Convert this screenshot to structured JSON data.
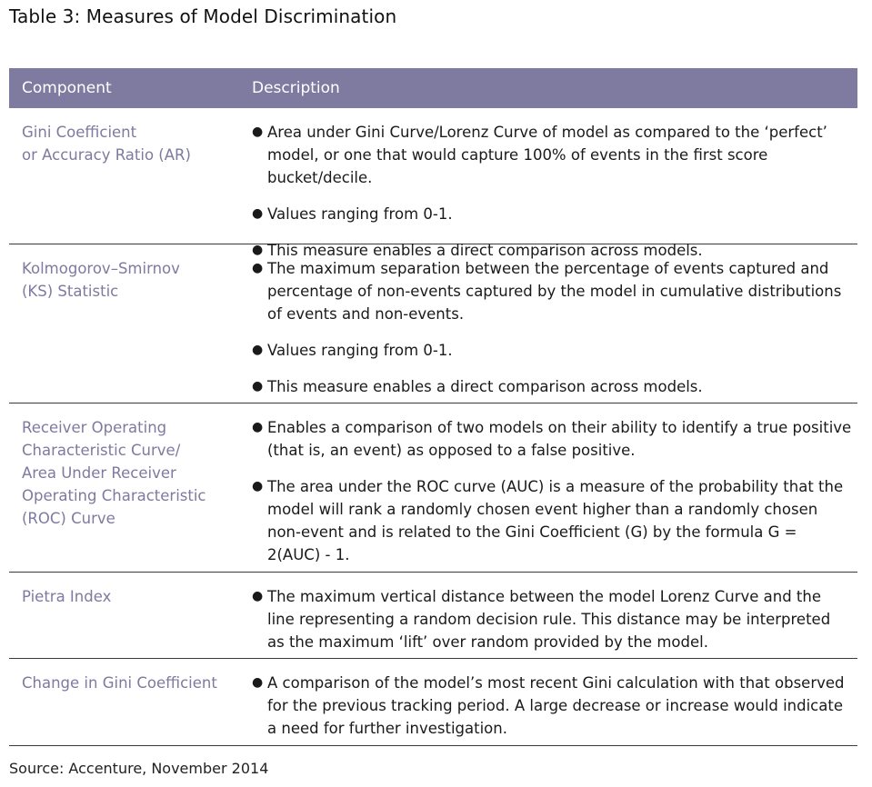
{
  "title": "Table 3: Measures of Model Discrimination",
  "header": {
    "component": "Component",
    "description": "Description"
  },
  "rows": [
    {
      "component_lines": [
        "Gini Coefficient",
        "or Accuracy Ratio (AR)"
      ],
      "bullets": [
        "Area under Gini Curve/Lorenz Curve of model as compared to the ‘perfect’ model, or one that would capture 100% of events in the first score bucket/decile.",
        "Values ranging from 0-1.",
        "This measure enables a direct comparison across models."
      ]
    },
    {
      "component_lines": [
        "Kolmogorov–Smirnov",
        "(KS) Statistic"
      ],
      "bullets": [
        "The maximum separation between the percentage of events captured and percentage of non-events captured by the model in cumulative distributions of events and non-events.",
        "Values ranging from 0-1.",
        "This measure enables a direct comparison across models."
      ]
    },
    {
      "component_lines": [
        "Receiver Operating",
        "Characteristic Curve/",
        "Area Under Receiver",
        "Operating Characteristic",
        "(ROC) Curve"
      ],
      "bullets": [
        "Enables a comparison of two models on their ability to identify a true positive (that is, an event) as opposed to a false positive.",
        "The area under the ROC curve (AUC) is a measure of the probability that the model will rank a randomly chosen event higher than a randomly chosen non-event and is related to the Gini Coefficient (G) by the formula G = 2(AUC) - 1."
      ]
    },
    {
      "component_lines": [
        "Pietra Index"
      ],
      "bullets": [
        "The maximum vertical distance between the model Lorenz Curve and the line representing a random decision rule. This distance may be interpreted as the maximum ‘lift’ over random provided by the model."
      ]
    },
    {
      "component_lines": [
        "Change in Gini Coefficient"
      ],
      "bullets": [
        "A comparison of the model’s most recent Gini calculation with that observed for the previous tracking period. A large decrease or increase would indicate a need for further investigation."
      ]
    }
  ],
  "source": "Source: Accenture, November 2014"
}
